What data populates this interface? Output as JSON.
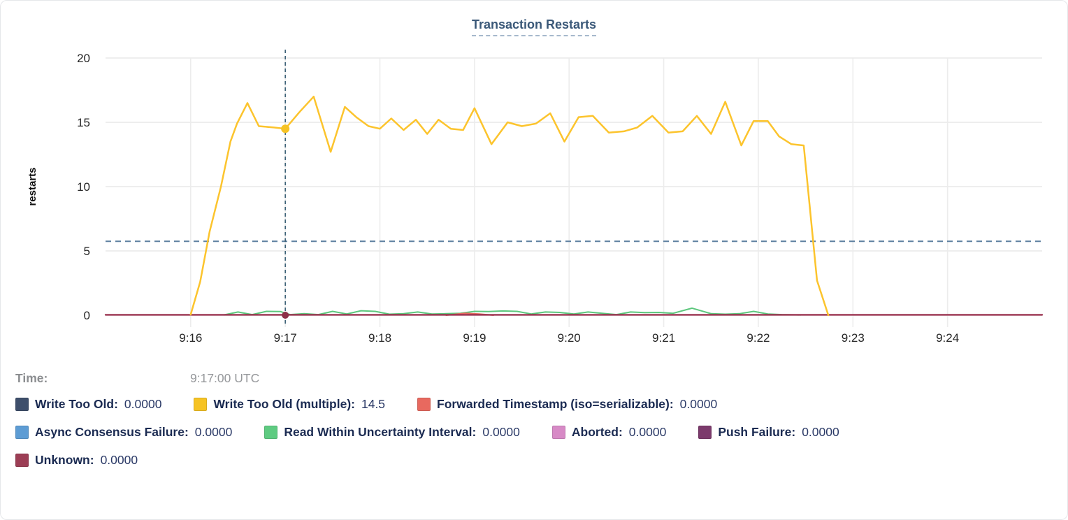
{
  "header": {
    "title": "Transaction Restarts"
  },
  "readout": {
    "time_label": "Time:",
    "time_value": "9:17:00 UTC"
  },
  "legend": {
    "row1": [
      {
        "label": "Write Too Old:",
        "value": "0.0000",
        "color": "#3e4f6b"
      },
      {
        "label": "Write Too Old (multiple):",
        "value": "14.5",
        "color": "#f6c324"
      },
      {
        "label": "Forwarded Timestamp (iso=serializable):",
        "value": "0.0000",
        "color": "#e8695f"
      }
    ],
    "row2": [
      {
        "label": "Async Consensus Failure:",
        "value": "0.0000",
        "color": "#5d9cd4"
      },
      {
        "label": "Read Within Uncertainty Interval:",
        "value": "0.0000",
        "color": "#5ecb81"
      },
      {
        "label": "Aborted:",
        "value": "0.0000",
        "color": "#d78ac6"
      },
      {
        "label": "Push Failure:",
        "value": "0.0000",
        "color": "#7c3a6c"
      }
    ],
    "row3": [
      {
        "label": "Unknown:",
        "value": "0.0000",
        "color": "#9c3e55"
      }
    ]
  },
  "chart_data": {
    "type": "line",
    "title": "Transaction Restarts",
    "xlabel": "",
    "ylabel": "restarts",
    "ylim": [
      0,
      20
    ],
    "y_ticks": [
      0,
      5,
      10,
      15,
      20
    ],
    "grid": true,
    "x_domain_minutes_after_9": [
      15.1,
      25.0
    ],
    "x_ticks": [
      {
        "t": 16,
        "label": "9:16"
      },
      {
        "t": 17,
        "label": "9:17"
      },
      {
        "t": 18,
        "label": "9:18"
      },
      {
        "t": 19,
        "label": "9:19"
      },
      {
        "t": 20,
        "label": "9:20"
      },
      {
        "t": 21,
        "label": "9:21"
      },
      {
        "t": 22,
        "label": "9:22"
      },
      {
        "t": 23,
        "label": "9:23"
      },
      {
        "t": 24,
        "label": "9:24"
      }
    ],
    "threshold_line": {
      "value": 5.75,
      "style": "dashed",
      "color": "#5e80a0"
    },
    "crosshair": {
      "t": 17,
      "time_label": "9:17:00 UTC",
      "points": [
        {
          "series": "Write Too Old (multiple)",
          "value": 14.5,
          "color": "#f6c324",
          "r": 6
        },
        {
          "series": "Unknown",
          "value": 0,
          "color": "#8e3048",
          "r": 5
        }
      ]
    },
    "series": [
      {
        "name": "Read Within Uncertainty Interval",
        "color": "#5dc77d",
        "width": 2,
        "points": [
          [
            16.35,
            0.02
          ],
          [
            16.5,
            0.25
          ],
          [
            16.65,
            0.05
          ],
          [
            16.8,
            0.3
          ],
          [
            16.95,
            0.28
          ],
          [
            17.05,
            0.05
          ],
          [
            17.2,
            0.12
          ],
          [
            17.35,
            0.05
          ],
          [
            17.5,
            0.3
          ],
          [
            17.65,
            0.1
          ],
          [
            17.8,
            0.35
          ],
          [
            17.95,
            0.3
          ],
          [
            18.1,
            0.08
          ],
          [
            18.25,
            0.12
          ],
          [
            18.4,
            0.25
          ],
          [
            18.55,
            0.1
          ],
          [
            18.7,
            0.12
          ],
          [
            18.85,
            0.15
          ],
          [
            19.0,
            0.3
          ],
          [
            19.15,
            0.28
          ],
          [
            19.3,
            0.33
          ],
          [
            19.45,
            0.3
          ],
          [
            19.6,
            0.1
          ],
          [
            19.75,
            0.25
          ],
          [
            19.9,
            0.22
          ],
          [
            20.05,
            0.1
          ],
          [
            20.2,
            0.25
          ],
          [
            20.35,
            0.15
          ],
          [
            20.5,
            0.05
          ],
          [
            20.65,
            0.25
          ],
          [
            20.8,
            0.2
          ],
          [
            20.95,
            0.22
          ],
          [
            21.1,
            0.15
          ],
          [
            21.3,
            0.55
          ],
          [
            21.5,
            0.12
          ],
          [
            21.65,
            0.08
          ],
          [
            21.8,
            0.12
          ],
          [
            21.95,
            0.3
          ],
          [
            22.1,
            0.1
          ],
          [
            22.25,
            0.05
          ],
          [
            22.45,
            0.02
          ]
        ]
      },
      {
        "name": "Forwarded Timestamp (iso=serializable)",
        "color": "#e8695f",
        "width": 2,
        "points": [
          [
            18.7,
            0.0
          ],
          [
            18.9,
            0.15
          ],
          [
            19.05,
            0.1
          ],
          [
            19.2,
            0.0
          ]
        ]
      },
      {
        "name": "Unknown",
        "color": "#9b3350",
        "width": 2.4,
        "points": [
          [
            15.1,
            0.03
          ],
          [
            25.0,
            0.03
          ]
        ]
      },
      {
        "name": "Write Too Old (multiple)",
        "color": "#fcc42d",
        "width": 2.5,
        "points": [
          [
            16.0,
            0.05
          ],
          [
            16.1,
            2.6
          ],
          [
            16.2,
            6.5
          ],
          [
            16.32,
            10.0
          ],
          [
            16.42,
            13.5
          ],
          [
            16.49,
            14.9
          ],
          [
            16.6,
            16.5
          ],
          [
            16.72,
            14.7
          ],
          [
            16.88,
            14.6
          ],
          [
            17.0,
            14.5
          ],
          [
            17.15,
            15.8
          ],
          [
            17.3,
            17.0
          ],
          [
            17.48,
            12.7
          ],
          [
            17.63,
            16.2
          ],
          [
            17.75,
            15.4
          ],
          [
            17.88,
            14.7
          ],
          [
            18.0,
            14.5
          ],
          [
            18.12,
            15.3
          ],
          [
            18.25,
            14.4
          ],
          [
            18.38,
            15.2
          ],
          [
            18.5,
            14.1
          ],
          [
            18.62,
            15.2
          ],
          [
            18.75,
            14.5
          ],
          [
            18.88,
            14.4
          ],
          [
            19.0,
            16.1
          ],
          [
            19.18,
            13.3
          ],
          [
            19.35,
            15.0
          ],
          [
            19.5,
            14.7
          ],
          [
            19.65,
            14.9
          ],
          [
            19.8,
            15.7
          ],
          [
            19.95,
            13.5
          ],
          [
            20.1,
            15.4
          ],
          [
            20.25,
            15.5
          ],
          [
            20.42,
            14.2
          ],
          [
            20.58,
            14.3
          ],
          [
            20.72,
            14.6
          ],
          [
            20.88,
            15.5
          ],
          [
            21.05,
            14.2
          ],
          [
            21.2,
            14.3
          ],
          [
            21.35,
            15.5
          ],
          [
            21.5,
            14.1
          ],
          [
            21.65,
            16.6
          ],
          [
            21.82,
            13.2
          ],
          [
            21.95,
            15.1
          ],
          [
            22.1,
            15.1
          ],
          [
            22.22,
            13.9
          ],
          [
            22.35,
            13.3
          ],
          [
            22.48,
            13.2
          ],
          [
            22.62,
            2.7
          ],
          [
            22.74,
            0.0
          ]
        ]
      }
    ],
    "legend_position": "bottom"
  }
}
